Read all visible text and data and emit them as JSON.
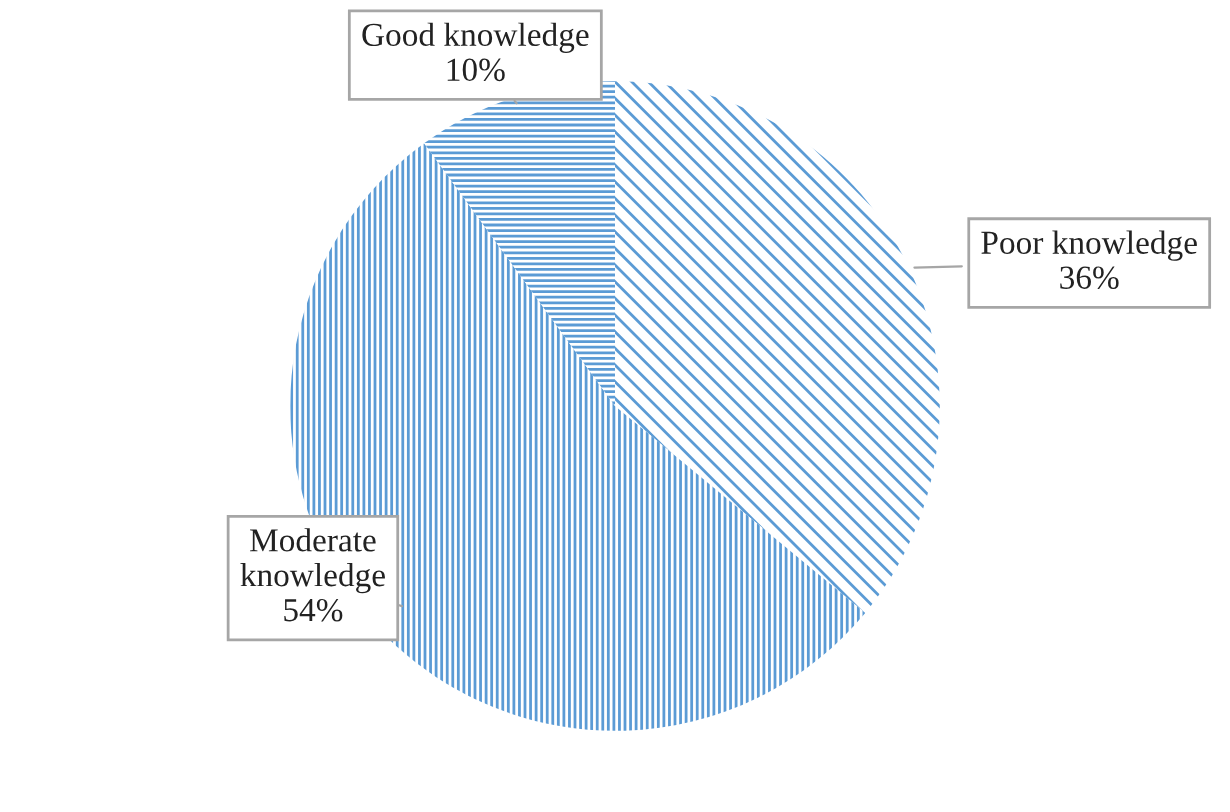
{
  "chart_data": {
    "type": "pie",
    "categories": [
      "Poor knowledge\n36%",
      "Moderate\nknowledge\n54%",
      "Good knowledge\n10%"
    ],
    "values": [
      36,
      54,
      10
    ],
    "colors": [
      "#5b9bd5",
      "#5b9bd5",
      "#5b9bd5"
    ],
    "legend": false
  }
}
